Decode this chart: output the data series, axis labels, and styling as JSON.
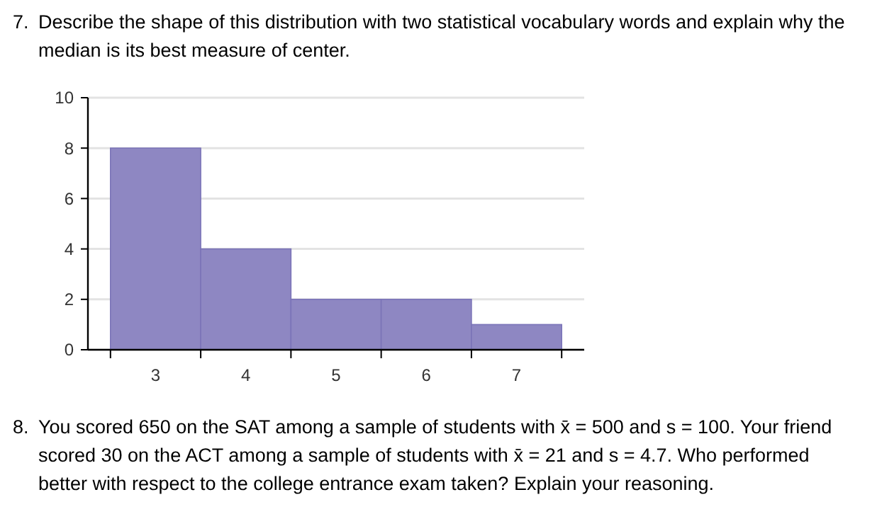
{
  "chart_data": {
    "type": "histogram",
    "title": "7. Describe the shape of this distribution with two statistical vocabulary words and explain why the median is its best measure of center.",
    "annotations": [
      "8. You scored 650 on the SAT among a sample of students with x̄ = 500 and s = 100. Your friend scored 30 on the ACT among a sample of students with x̄ = 21 and s = 4.7. Who performed better with respect to the college entrance exam taken? Explain your reasoning."
    ],
    "bins": [
      2.5,
      3.5,
      4.5,
      5.5,
      6.5,
      7.5
    ],
    "values": [
      8,
      4,
      2,
      2,
      1
    ],
    "color": "#8e87c2",
    "xlim": [
      2.25,
      7.75
    ],
    "xticks": [
      {
        "value": 2.5,
        "label": null
      },
      3,
      {
        "value": 3.5,
        "label": null
      },
      4,
      {
        "value": 4.5,
        "label": null
      },
      5,
      {
        "value": 5.5,
        "label": null
      },
      6,
      {
        "value": 6.5,
        "label": null
      },
      7,
      {
        "value": 7.5,
        "label": null
      }
    ],
    "ylim": [
      0,
      10
    ],
    "yticks": [
      0,
      2,
      4,
      6,
      8,
      10
    ],
    "grid": "y"
  }
}
